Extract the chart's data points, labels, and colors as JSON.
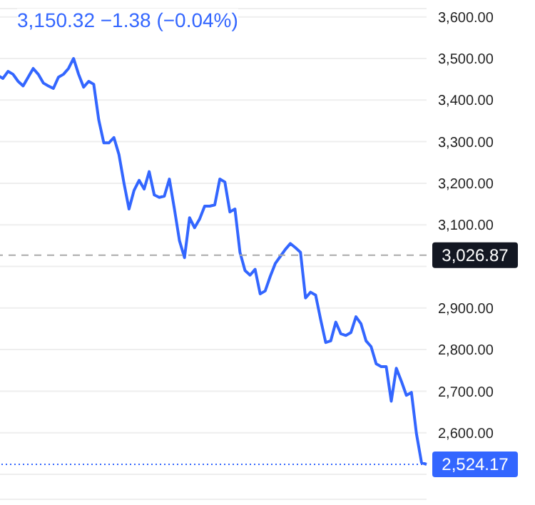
{
  "chart_data": {
    "type": "line",
    "title": "3,150.32 −1.38 (−0.04%)",
    "categories": [
      null,
      null,
      null,
      null,
      null,
      null,
      null,
      null,
      null,
      null,
      null,
      null,
      null,
      null,
      null,
      null,
      null,
      null,
      null,
      null,
      null,
      null,
      null,
      null,
      null,
      null,
      null,
      null,
      null,
      null,
      null,
      null,
      null,
      null,
      null,
      null,
      null,
      null,
      null,
      null,
      null,
      null,
      null,
      null,
      null,
      null,
      null,
      null,
      null,
      null,
      null,
      null,
      null,
      null,
      null,
      null,
      null,
      null,
      null,
      null,
      null,
      null,
      null,
      null,
      null,
      null,
      null,
      null,
      null,
      null,
      null,
      null,
      null,
      null,
      null,
      null,
      null,
      null,
      null,
      null,
      null,
      null,
      null,
      null,
      null,
      null,
      null
    ],
    "series": [
      {
        "color": "#3366ff",
        "values": [
          3469,
          3459,
          3452,
          3469,
          3462,
          3445,
          3434,
          3455,
          3476,
          3462,
          3441,
          3434,
          3428,
          3455,
          3462,
          3476,
          3500,
          3462,
          3431,
          3445,
          3438,
          3352,
          3297,
          3297,
          3310,
          3269,
          3200,
          3138,
          3183,
          3207,
          3186,
          3228,
          3172,
          3166,
          3169,
          3210,
          3138,
          3062,
          3021,
          3117,
          3093,
          3114,
          3145,
          3145,
          3148,
          3210,
          3203,
          3131,
          3138,
          3034,
          2990,
          2979,
          2993,
          2934,
          2941,
          2976,
          3007,
          3024,
          3041,
          3055,
          3045,
          3034,
          2924,
          2938,
          2931,
          2872,
          2817,
          2821,
          2866,
          2838,
          2834,
          2841,
          2879,
          2862,
          2821,
          2807,
          2766,
          2759,
          2759,
          2676,
          2755,
          2724,
          2690,
          2697,
          2597,
          2528,
          2524
        ]
      }
    ],
    "ylim": [
      2440,
      3620
    ],
    "yticks": [
      {
        "value": 2500,
        "label": null
      },
      {
        "value": 2600,
        "label": "2,600.00"
      },
      {
        "value": 2700,
        "label": "2,700.00"
      },
      {
        "value": 2800,
        "label": "2,800.00"
      },
      {
        "value": 2900,
        "label": "2,900.00"
      },
      {
        "value": 3000,
        "label": null
      },
      {
        "value": 3100,
        "label": "3,100.00"
      },
      {
        "value": 3200,
        "label": "3,200.00"
      },
      {
        "value": 3300,
        "label": "3,300.00"
      },
      {
        "value": 3400,
        "label": "3,400.00"
      },
      {
        "value": 3500,
        "label": "3,500.00"
      },
      {
        "value": 3600,
        "label": "3,600.00"
      }
    ],
    "ref_lines": [
      {
        "axis": "y",
        "value": 3026.87,
        "label": "3,026.87",
        "color": "#aaaaaa",
        "line_style": "dashed"
      },
      {
        "axis": "y",
        "value": 2524.17,
        "label": "2,524.17",
        "color": "#3366ff",
        "line_style": "dotted"
      }
    ],
    "grid": "y",
    "marker": "none",
    "line_style": "solid",
    "tick_labels": "y"
  }
}
